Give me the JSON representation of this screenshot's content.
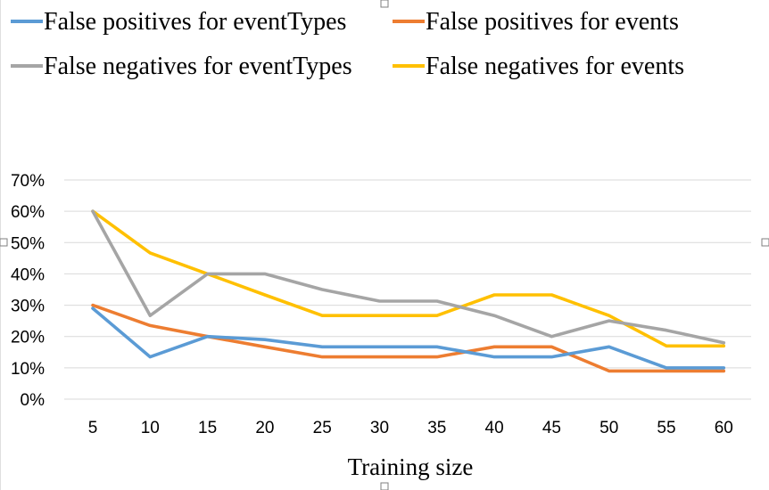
{
  "chart_data": {
    "type": "line",
    "title": "",
    "xlabel": "Training size",
    "ylabel": "",
    "categories": [
      "5",
      "10",
      "15",
      "20",
      "25",
      "30",
      "35",
      "40",
      "45",
      "50",
      "55",
      "60"
    ],
    "y_ticks": [
      "0%",
      "10%",
      "20%",
      "30%",
      "40%",
      "50%",
      "60%",
      "70%"
    ],
    "ylim": [
      0,
      70
    ],
    "y_unit": "percent",
    "grid": true,
    "legend_position": "top",
    "series": [
      {
        "name": "False positives for eventTypes",
        "color": "#5B9BD5",
        "values": [
          29,
          13.5,
          20,
          19,
          16.7,
          16.7,
          16.7,
          13.5,
          13.5,
          16.7,
          10,
          10
        ]
      },
      {
        "name": "False positives for events",
        "color": "#ED7D31",
        "values": [
          30,
          23.5,
          20,
          16.7,
          13.5,
          13.5,
          13.5,
          16.7,
          16.7,
          9,
          9,
          9
        ]
      },
      {
        "name": "False negatives for eventTypes",
        "color": "#A5A5A5",
        "values": [
          60,
          26.7,
          40,
          40,
          35,
          31.3,
          31.3,
          26.7,
          20,
          25,
          22,
          18
        ]
      },
      {
        "name": "False negatives for events",
        "color": "#FFC000",
        "values": [
          60,
          46.7,
          40,
          33.3,
          26.7,
          26.7,
          26.7,
          33.3,
          33.3,
          26.7,
          17,
          17
        ]
      }
    ]
  }
}
